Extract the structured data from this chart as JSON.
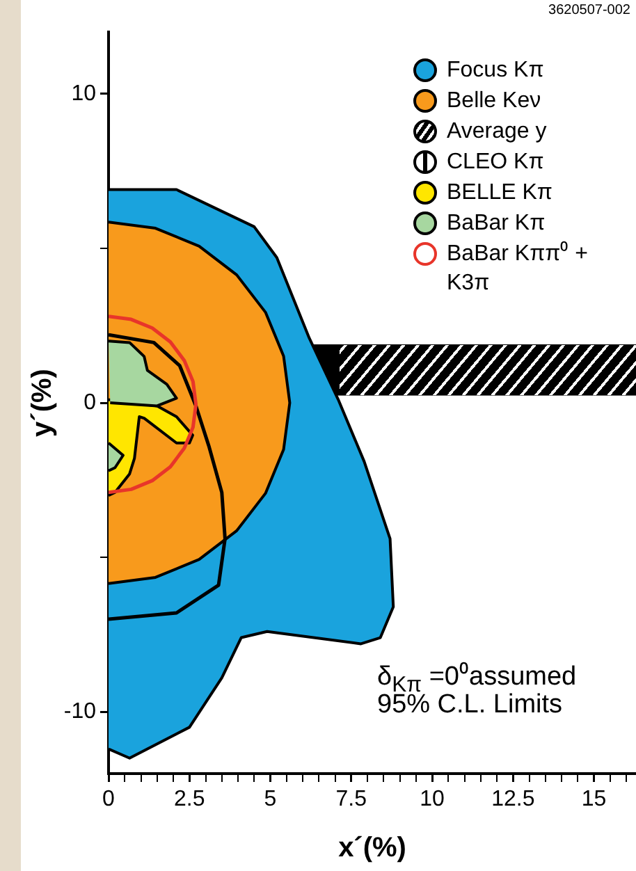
{
  "chart_data": {
    "type": "area",
    "xlabel": "x´(%)",
    "ylabel": "y´(%)",
    "xlim": [
      0,
      16.3
    ],
    "ylim": [
      -12,
      12
    ],
    "xticks": [
      0,
      {
        "value": 0.5,
        "label": null
      },
      {
        "value": 1,
        "label": null
      },
      {
        "value": 1.5,
        "label": null
      },
      {
        "value": 2,
        "label": null
      },
      2.5,
      {
        "value": 3,
        "label": null
      },
      {
        "value": 3.5,
        "label": null
      },
      {
        "value": 4,
        "label": null
      },
      {
        "value": 4.5,
        "label": null
      },
      5,
      {
        "value": 5.5,
        "label": null
      },
      {
        "value": 6,
        "label": null
      },
      {
        "value": 6.5,
        "label": null
      },
      {
        "value": 7,
        "label": null
      },
      7.5,
      {
        "value": 8,
        "label": null
      },
      {
        "value": 8.5,
        "label": null
      },
      {
        "value": 9,
        "label": null
      },
      {
        "value": 9.5,
        "label": null
      },
      10,
      {
        "value": 10.5,
        "label": null
      },
      {
        "value": 11,
        "label": null
      },
      {
        "value": 11.5,
        "label": null
      },
      {
        "value": 12,
        "label": null
      },
      12.5,
      {
        "value": 13,
        "label": null
      },
      {
        "value": 13.5,
        "label": null
      },
      {
        "value": 14,
        "label": null
      },
      {
        "value": 14.5,
        "label": null
      },
      15,
      {
        "value": 15.5,
        "label": null
      },
      {
        "value": 16,
        "label": null
      }
    ],
    "yticks": [
      -10,
      {
        "value": -5,
        "label": null
      },
      0,
      {
        "value": 5,
        "label": null
      },
      10
    ],
    "grid": false,
    "legend": "top right",
    "series": [
      {
        "name": "Focus Kπ",
        "type": "area",
        "color": "#1aa3dd",
        "x": [
          0,
          2.1,
          4.5,
          5.2,
          6.2,
          7.1,
          7.9,
          8.7,
          8.8,
          8.4,
          7.8,
          4.9,
          4.1,
          3.5,
          2.5,
          0.65,
          0
        ],
        "values": [
          6.9,
          6.9,
          5.7,
          4.7,
          2.1,
          0.1,
          -1.9,
          -4.4,
          -6.6,
          -7.6,
          -7.8,
          -7.4,
          -7.6,
          -8.9,
          -10.5,
          -11.5,
          -11.2
        ]
      },
      {
        "name": "Belle Keν",
        "type": "area",
        "color": "#f89a1c",
        "x": [
          0,
          1.45,
          2.8,
          3.96,
          4.85,
          5.41,
          5.6,
          5.41,
          4.85,
          3.96,
          2.8,
          1.45,
          0
        ],
        "values": [
          5.85,
          5.65,
          5.07,
          4.14,
          2.93,
          1.51,
          0,
          -1.51,
          -2.93,
          -4.14,
          -5.07,
          -5.65,
          -5.85
        ]
      },
      {
        "name": "CLEO Kπ",
        "type": "line",
        "color": "#000000",
        "x": [
          0,
          1.4,
          2.2,
          2.7,
          3.1,
          3.5,
          3.6,
          3.4,
          2.1,
          0
        ],
        "values": [
          2.2,
          1.95,
          1.2,
          -0.1,
          -1.4,
          -2.9,
          -4.4,
          -5.9,
          -6.8,
          -7
        ]
      },
      {
        "name": "BELLE Kπ",
        "type": "area",
        "color": "#ffe600",
        "x": [
          0,
          1.5,
          2.1,
          2.6,
          2.5,
          2.1,
          1.1,
          0.95,
          0.8,
          0.65,
          0.2,
          0
        ],
        "values": [
          0.1,
          -0.1,
          -0.45,
          -1.05,
          -1.3,
          -1.3,
          -0.5,
          -0.45,
          -1.8,
          -2.3,
          -2.9,
          -3
        ]
      },
      {
        "name": "BaBar Kπ",
        "type": "area",
        "color": "#a7d7a0",
        "x": [
          0,
          0.65,
          1.1,
          1.2,
          1.8,
          2.1,
          1.5,
          0.05
        ],
        "values": [
          2,
          1.95,
          1.5,
          1.05,
          0.6,
          0.15,
          -0.1,
          0
        ]
      },
      {
        "type": "area",
        "color": "#a7d7a0",
        "x": [
          0,
          0.45,
          0.2,
          0
        ],
        "values": [
          -1.3,
          -1.7,
          -2.1,
          -2.2
        ]
      },
      {
        "name": "BaBar Kππ⁰ + K3π",
        "type": "line",
        "color": "#e8352a",
        "x": [
          0,
          0.7,
          1.35,
          1.91,
          2.34,
          2.61,
          2.7,
          2.61,
          2.34,
          1.91,
          1.35,
          0.7,
          0
        ],
        "values": [
          2.8,
          2.7,
          2.42,
          1.97,
          1.37,
          0.69,
          -0.05,
          -0.79,
          -1.47,
          -2.07,
          -2.52,
          -2.8,
          -2.9
        ]
      }
    ],
    "bands": [
      {
        "axis": "y",
        "from": 0.23,
        "to": 1.89,
        "label": "Average y",
        "color": "#000000"
      }
    ],
    "annotations": [
      "δ$_{Kπ}$ =0⁰assumed",
      "95% C.L. Limits",
      "3620507-002"
    ]
  }
}
